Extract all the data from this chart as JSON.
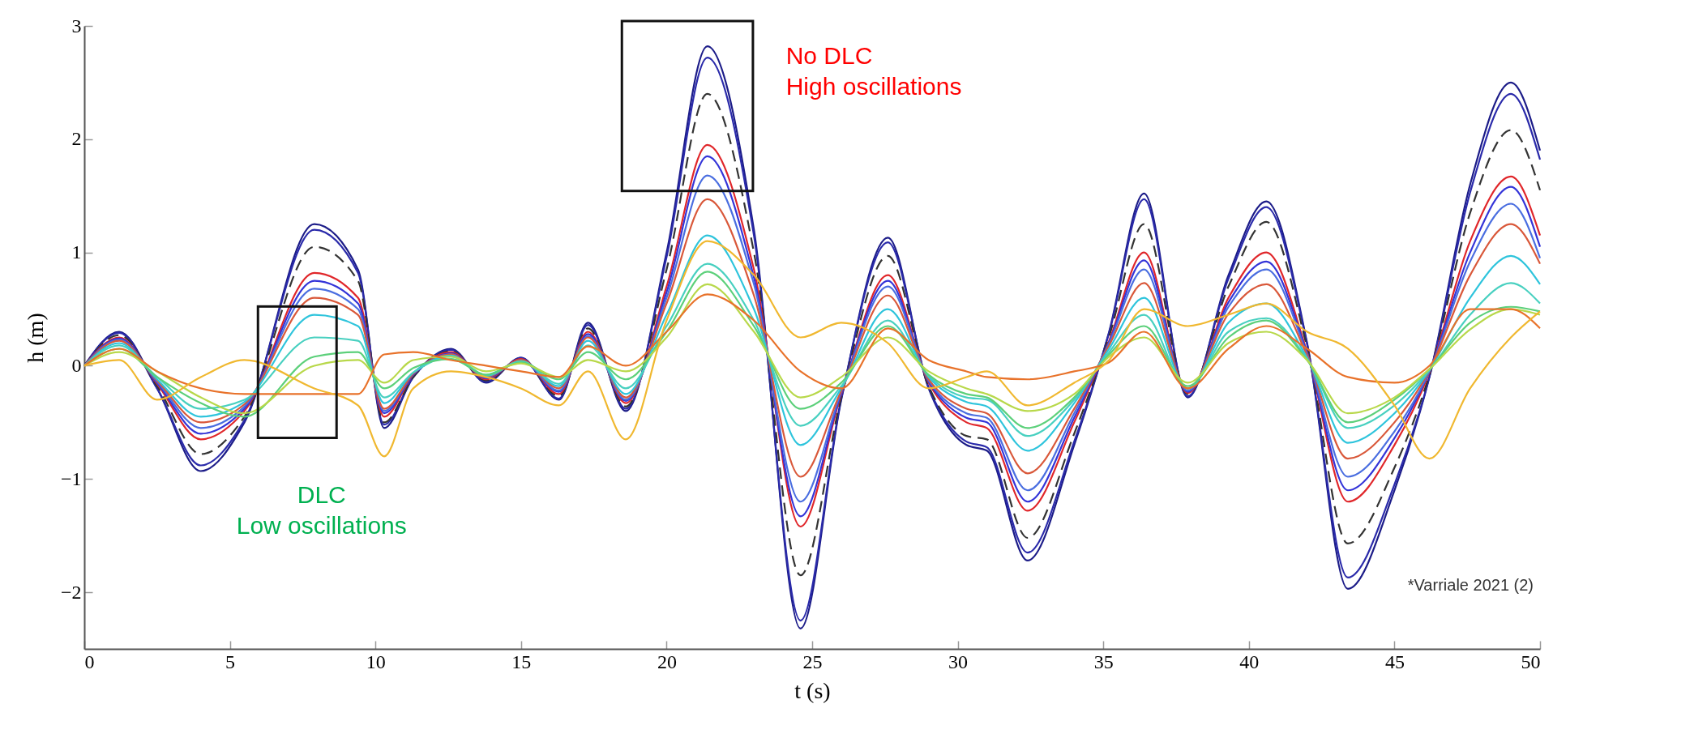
{
  "chart_data": {
    "type": "line",
    "xlabel": "t (s)",
    "ylabel": "h (m)",
    "x": [
      0,
      1.2,
      2.5,
      4,
      5.5,
      7.9,
      9.4,
      10.3,
      11.3,
      12.6,
      13.8,
      15,
      16.3,
      17.3,
      18.6,
      20,
      21.4,
      23,
      24.6,
      26,
      27.6,
      29,
      30.3,
      31,
      32.4,
      34,
      35.2,
      36.4,
      37.9,
      39.3,
      40.6,
      42,
      43.4,
      45,
      46.2,
      47.6,
      49,
      50
    ],
    "xlim": [
      0,
      50
    ],
    "xticks": [
      0,
      5,
      10,
      15,
      20,
      25,
      30,
      35,
      40,
      45,
      50
    ],
    "ylim": [
      -2.5,
      3
    ],
    "yticks": [
      -2,
      -1,
      0,
      1,
      2,
      3
    ],
    "grid": false,
    "series": [
      {
        "color": "#1c1c88",
        "values": [
          0,
          0.3,
          -0.2,
          -0.93,
          -0.5,
          1.25,
          0.85,
          -0.55,
          -0.1,
          0.15,
          -0.15,
          0.07,
          -0.3,
          0.38,
          -0.4,
          1.0,
          2.82,
          1.2,
          -2.32,
          -0.3,
          1.13,
          -0.2,
          -0.7,
          -0.75,
          -1.72,
          -0.7,
          0.3,
          1.52,
          -0.28,
          0.8,
          1.45,
          0.2,
          -1.97,
          -1.1,
          -0.1,
          1.6,
          2.5,
          1.9
        ]
      },
      {
        "color": "#2a2aaa",
        "values": [
          0,
          0.29,
          -0.2,
          -0.88,
          -0.48,
          1.2,
          0.82,
          -0.52,
          -0.1,
          0.14,
          -0.14,
          0.07,
          -0.29,
          0.36,
          -0.38,
          0.96,
          2.72,
          1.15,
          -2.25,
          -0.29,
          1.09,
          -0.19,
          -0.67,
          -0.72,
          -1.65,
          -0.67,
          0.29,
          1.47,
          -0.27,
          0.77,
          1.4,
          0.19,
          -1.87,
          -1.05,
          -0.1,
          1.53,
          2.4,
          1.82
        ]
      },
      {
        "color": "#333333",
        "line_style": "dashed",
        "values": [
          0,
          0.27,
          -0.18,
          -0.78,
          -0.45,
          1.05,
          0.75,
          -0.5,
          -0.1,
          0.13,
          -0.13,
          0.06,
          -0.27,
          0.33,
          -0.36,
          0.85,
          2.4,
          1.0,
          -1.85,
          -0.28,
          0.97,
          -0.18,
          -0.62,
          -0.65,
          -1.52,
          -0.6,
          0.26,
          1.25,
          -0.25,
          0.7,
          1.27,
          0.16,
          -1.57,
          -0.9,
          -0.08,
          1.35,
          2.08,
          1.55
        ]
      },
      {
        "color": "#e0262a",
        "values": [
          0,
          0.25,
          -0.16,
          -0.65,
          -0.4,
          0.82,
          0.6,
          -0.45,
          -0.08,
          0.12,
          -0.12,
          0.06,
          -0.25,
          0.3,
          -0.33,
          0.7,
          1.95,
          0.85,
          -1.42,
          -0.25,
          0.8,
          -0.15,
          -0.5,
          -0.55,
          -1.28,
          -0.5,
          0.22,
          1.0,
          -0.24,
          0.6,
          1.0,
          0.12,
          -1.2,
          -0.7,
          -0.06,
          1.1,
          1.67,
          1.15
        ]
      },
      {
        "color": "#3434d8",
        "values": [
          0,
          0.24,
          -0.15,
          -0.6,
          -0.38,
          0.75,
          0.55,
          -0.42,
          -0.08,
          0.11,
          -0.11,
          0.05,
          -0.23,
          0.28,
          -0.31,
          0.65,
          1.85,
          0.78,
          -1.33,
          -0.24,
          0.75,
          -0.14,
          -0.46,
          -0.5,
          -1.2,
          -0.46,
          0.21,
          0.93,
          -0.23,
          0.56,
          0.92,
          0.11,
          -1.1,
          -0.64,
          -0.05,
          1.0,
          1.58,
          1.05
        ]
      },
      {
        "color": "#4a6ee0",
        "values": [
          0,
          0.23,
          -0.14,
          -0.55,
          -0.36,
          0.68,
          0.5,
          -0.4,
          -0.07,
          0.1,
          -0.1,
          0.05,
          -0.22,
          0.26,
          -0.3,
          0.6,
          1.68,
          0.72,
          -1.2,
          -0.23,
          0.7,
          -0.13,
          -0.42,
          -0.46,
          -1.1,
          -0.42,
          0.2,
          0.85,
          -0.22,
          0.52,
          0.85,
          0.1,
          -0.98,
          -0.58,
          -0.05,
          0.92,
          1.43,
          0.95
        ]
      },
      {
        "color": "#d9583a",
        "values": [
          0,
          0.22,
          -0.13,
          -0.5,
          -0.34,
          0.6,
          0.45,
          -0.38,
          -0.07,
          0.1,
          -0.1,
          0.05,
          -0.2,
          0.25,
          -0.28,
          0.55,
          1.47,
          0.62,
          -0.98,
          -0.22,
          0.62,
          -0.12,
          -0.38,
          -0.42,
          -0.95,
          -0.38,
          0.18,
          0.73,
          -0.2,
          0.46,
          0.72,
          0.09,
          -0.82,
          -0.5,
          -0.04,
          0.8,
          1.25,
          0.9
        ]
      },
      {
        "color": "#2ec4dc",
        "values": [
          0,
          0.2,
          -0.12,
          -0.45,
          -0.32,
          0.45,
          0.35,
          -0.33,
          -0.06,
          0.09,
          -0.09,
          0.04,
          -0.18,
          0.22,
          -0.25,
          0.45,
          1.15,
          0.5,
          -0.7,
          -0.2,
          0.5,
          -0.1,
          -0.32,
          -0.36,
          -0.75,
          -0.33,
          0.15,
          0.6,
          -0.2,
          0.38,
          0.55,
          0.07,
          -0.68,
          -0.42,
          -0.04,
          0.6,
          0.97,
          0.72
        ]
      },
      {
        "color": "#48d0c0",
        "values": [
          0,
          0.18,
          -0.1,
          -0.38,
          -0.3,
          0.25,
          0.22,
          -0.28,
          -0.06,
          0.08,
          -0.08,
          0.04,
          -0.16,
          0.18,
          -0.2,
          0.35,
          0.9,
          0.4,
          -0.53,
          -0.18,
          0.4,
          -0.09,
          -0.28,
          -0.3,
          -0.62,
          -0.3,
          0.12,
          0.45,
          -0.2,
          0.3,
          0.42,
          0.06,
          -0.55,
          -0.35,
          -0.04,
          0.45,
          0.73,
          0.55
        ]
      },
      {
        "color": "#5cd07a",
        "values": [
          0,
          0.15,
          -0.1,
          -0.33,
          -0.45,
          0.08,
          0.12,
          -0.2,
          -0.02,
          0.06,
          -0.08,
          0.03,
          -0.12,
          0.12,
          -0.12,
          0.3,
          0.83,
          0.35,
          -0.38,
          -0.15,
          0.35,
          -0.08,
          -0.25,
          -0.28,
          -0.55,
          -0.28,
          0.1,
          0.35,
          -0.18,
          0.25,
          0.4,
          0.05,
          -0.5,
          -0.3,
          -0.03,
          0.38,
          0.52,
          0.48
        ]
      },
      {
        "color": "#b8d84a",
        "values": [
          0,
          0.12,
          -0.05,
          -0.28,
          -0.42,
          0.0,
          0.05,
          -0.15,
          0.05,
          0.08,
          -0.05,
          0.02,
          -0.1,
          0.05,
          -0.05,
          0.25,
          0.72,
          0.3,
          -0.28,
          -0.1,
          0.25,
          -0.05,
          -0.2,
          -0.25,
          -0.4,
          -0.25,
          0.08,
          0.25,
          -0.15,
          0.2,
          0.3,
          0.05,
          -0.42,
          -0.28,
          -0.03,
          0.32,
          0.5,
          0.45
        ]
      },
      {
        "color": "#e8722a",
        "values": [
          0,
          0.15,
          -0.05,
          -0.2,
          -0.25,
          -0.25,
          -0.25,
          0.1,
          0.12,
          0.05,
          0,
          -0.05,
          -0.1,
          0.17,
          0.0,
          0.3,
          0.63,
          0.4,
          -0.05,
          -0.2,
          0.33,
          0.05,
          -0.05,
          -0.1,
          -0.12,
          -0.05,
          0.03,
          0.3,
          -0.2,
          0.15,
          0.35,
          0.15,
          -0.1,
          -0.15,
          0.0,
          0.5,
          0.5,
          0.33
        ]
      },
      {
        "color": "#f0b830",
        "values": [
          0,
          0.05,
          -0.3,
          -0.1,
          0.05,
          -0.2,
          -0.35,
          -0.8,
          -0.2,
          -0.05,
          -0.1,
          -0.2,
          -0.35,
          -0.05,
          -0.65,
          0.4,
          1.1,
          0.8,
          0.25,
          0.38,
          0.2,
          -0.2,
          -0.1,
          -0.05,
          -0.35,
          -0.15,
          0.05,
          0.5,
          0.35,
          0.45,
          0.55,
          0.3,
          0.15,
          -0.35,
          -0.82,
          -0.2,
          0.25,
          0.48
        ]
      }
    ],
    "annotations": [
      "No DLC\nHigh oscillations",
      "DLC\nLow oscillations",
      "*Varriale 2021 (2)"
    ]
  }
}
